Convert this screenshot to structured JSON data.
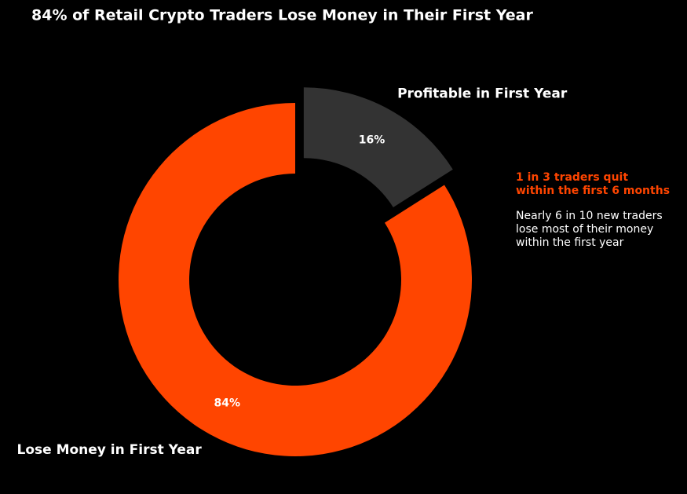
{
  "chart_data": {
    "type": "donut",
    "title": "84% of Retail Crypto Traders Lose Money in Their First Year",
    "categories": [
      "Lose Money in First Year",
      "Profitable in First Year"
    ],
    "values": [
      84,
      16
    ],
    "value_labels": [
      "84%",
      "16%"
    ],
    "colors": [
      "#ff4500",
      "#333333"
    ],
    "explode": [
      0,
      0.1
    ],
    "annotations": [
      {
        "lines": [
          "1 in 3 traders quit",
          "within the first 6 months"
        ],
        "color": "#ff4500",
        "bold": true
      },
      {
        "lines": [
          "Nearly 6 in 10 new traders",
          "lose most of their money",
          "within the first year"
        ],
        "color": "#ffffff",
        "bold": false
      }
    ]
  }
}
